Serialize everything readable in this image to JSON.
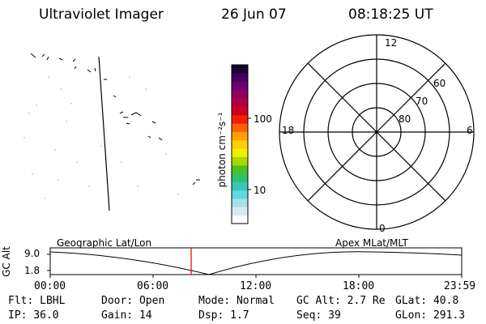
{
  "header": {
    "instrument": "Ultraviolet Imager",
    "date": "26 Jun 07",
    "time": "08:18:25 UT"
  },
  "colorbar": {
    "unit_label": "photon cm⁻²s⁻¹",
    "ticks": [
      "100",
      "10"
    ],
    "colors": [
      "#ffffff",
      "#dde8ee",
      "#a8e0e8",
      "#60d8e0",
      "#38c8b0",
      "#30c070",
      "#50c020",
      "#a8d800",
      "#f0f000",
      "#ffd000",
      "#ffa000",
      "#ff6000",
      "#f02000",
      "#d00020",
      "#b00040",
      "#900060",
      "#6a0070",
      "#44005a",
      "#180030"
    ]
  },
  "polar_plot": {
    "mlt_labels": {
      "top": "12",
      "bottom": "0",
      "left": "18",
      "right": "6"
    },
    "lat_labels": [
      "60",
      "70",
      "80"
    ]
  },
  "orbit_plot": {
    "left_label": "Geographic Lat/Lon",
    "right_label": "Apex MLat/MLT",
    "y_axis_label": "GC Alt",
    "y_ticks": [
      "9.0",
      "1.8"
    ],
    "x_ticks": [
      "00:00",
      "06:00",
      "12:00",
      "18:00",
      "23:59"
    ],
    "current_marker_color": "#e00000"
  },
  "status": {
    "flt": "Flt: LBHL",
    "ip": "IP: 36.0",
    "door": "Door: Open",
    "gain": "Gain: 14",
    "mode": "Mode: Normal",
    "dsp": "Dsp:    1.7",
    "gc_alt": "GC Alt: 2.7 Re",
    "seq": "Seq: 39",
    "glat": "GLat:  40.8",
    "glon": "GLon: 291.3"
  }
}
